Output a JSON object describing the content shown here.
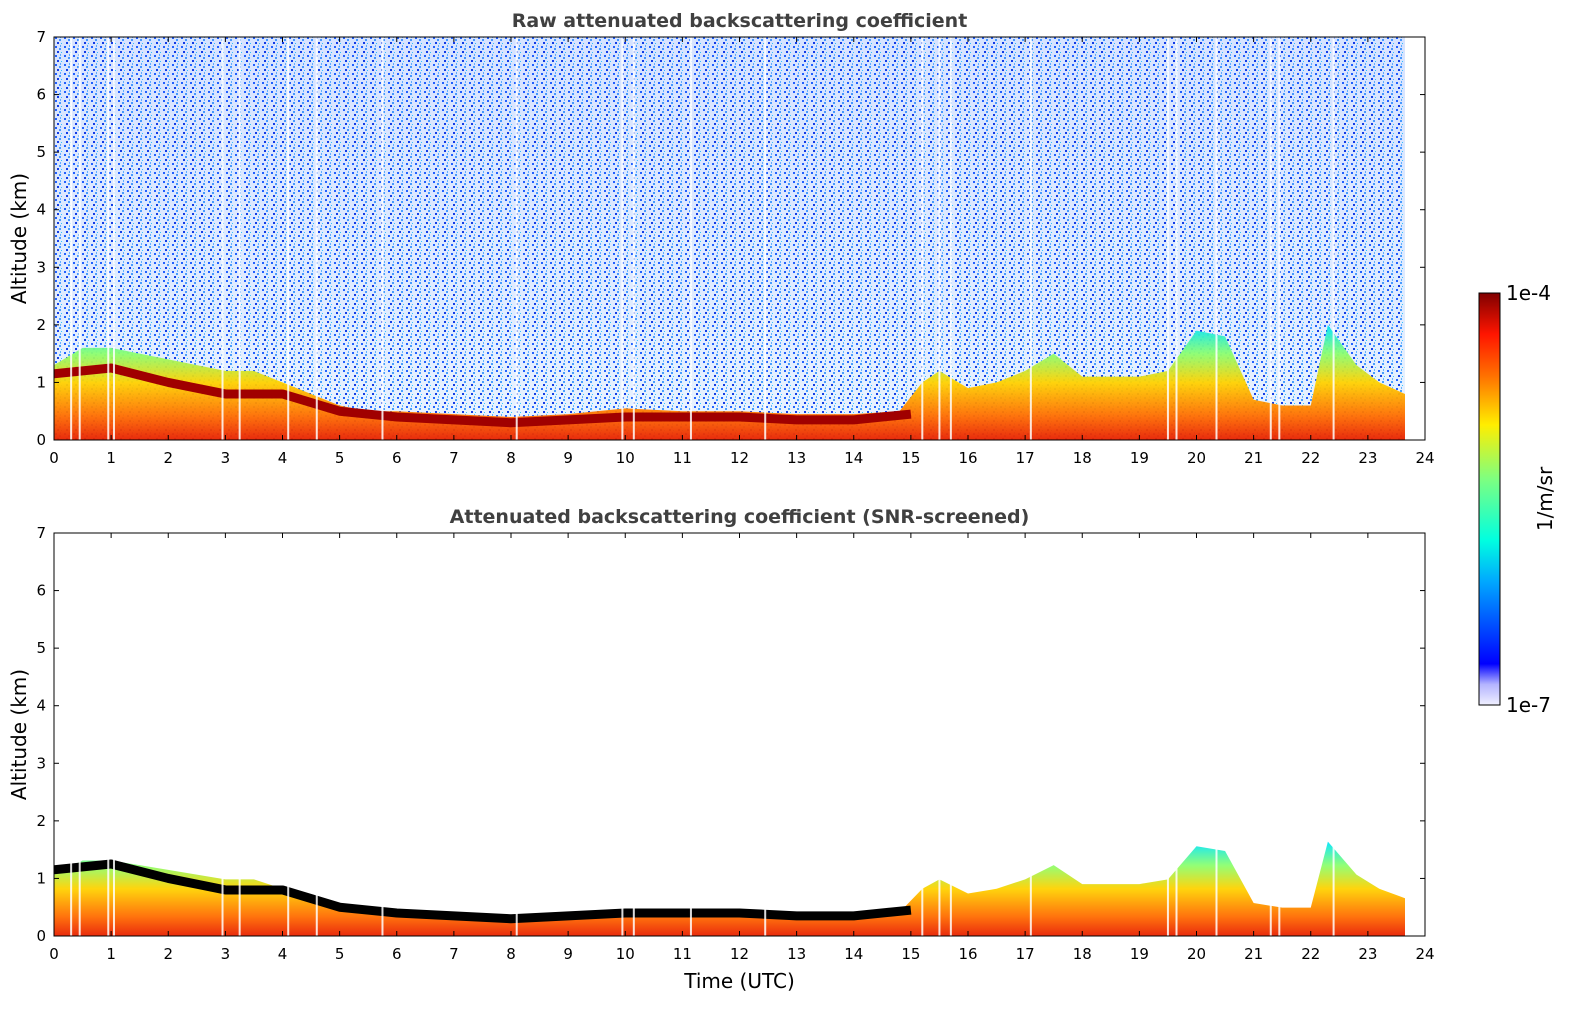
{
  "chart_data": [
    {
      "type": "heatmap",
      "title": "Raw attenuated backscattering coefficient",
      "xlabel": "",
      "ylabel": "Altitude (km)",
      "xlim": [
        0,
        24
      ],
      "ylim": [
        0,
        7
      ],
      "xticks": [
        0,
        1,
        2,
        3,
        4,
        5,
        6,
        7,
        8,
        9,
        10,
        11,
        12,
        13,
        14,
        15,
        16,
        17,
        18,
        19,
        20,
        21,
        22,
        23,
        24
      ],
      "yticks": [
        0,
        1,
        2,
        3,
        4,
        5,
        6,
        7
      ],
      "layer_top_km": {
        "x": [
          0,
          0.5,
          1,
          1.5,
          2,
          2.5,
          3,
          3.5,
          4,
          4.5,
          5,
          5.5,
          6,
          7,
          8,
          9,
          10,
          11,
          12,
          13,
          14,
          14.8,
          15.2,
          15.5,
          16,
          16.5,
          17,
          17.5,
          18,
          18.5,
          19,
          19.5,
          20,
          20.5,
          21,
          21.5,
          22,
          22.3,
          22.8,
          23.2,
          23.65
        ],
        "y": [
          1.3,
          1.6,
          1.6,
          1.5,
          1.4,
          1.3,
          1.2,
          1.2,
          1.0,
          0.8,
          0.6,
          0.5,
          0.5,
          0.45,
          0.4,
          0.45,
          0.55,
          0.5,
          0.5,
          0.45,
          0.45,
          0.5,
          1.0,
          1.2,
          0.9,
          1.0,
          1.2,
          1.5,
          1.1,
          1.1,
          1.1,
          1.2,
          1.9,
          1.8,
          0.7,
          0.6,
          0.6,
          2.0,
          1.3,
          1.0,
          0.8
        ]
      },
      "high_backscatter_layer": {
        "x": [
          0,
          0.5,
          1,
          2,
          3,
          4,
          5,
          6,
          7,
          8,
          9,
          10,
          11,
          12,
          13,
          14,
          15
        ],
        "y": [
          1.15,
          1.2,
          1.25,
          1.0,
          0.8,
          0.8,
          0.5,
          0.4,
          0.35,
          0.3,
          0.35,
          0.4,
          0.4,
          0.4,
          0.35,
          0.35,
          0.45
        ]
      }
    },
    {
      "type": "heatmap",
      "title": "Attenuated backscattering coefficient (SNR-screened)",
      "xlabel": "Time (UTC)",
      "ylabel": "Altitude (km)",
      "xlim": [
        0,
        24
      ],
      "ylim": [
        0,
        7
      ],
      "xticks": [
        0,
        1,
        2,
        3,
        4,
        5,
        6,
        7,
        8,
        9,
        10,
        11,
        12,
        13,
        14,
        15,
        16,
        17,
        18,
        19,
        20,
        21,
        22,
        23,
        24
      ],
      "yticks": [
        0,
        1,
        2,
        3,
        4,
        5,
        6,
        7
      ]
    }
  ],
  "colorbar": {
    "label": "1/m/sr",
    "max_label": "1e-4",
    "min_label": "1e-7",
    "scale": "log",
    "colormap": "jet"
  }
}
